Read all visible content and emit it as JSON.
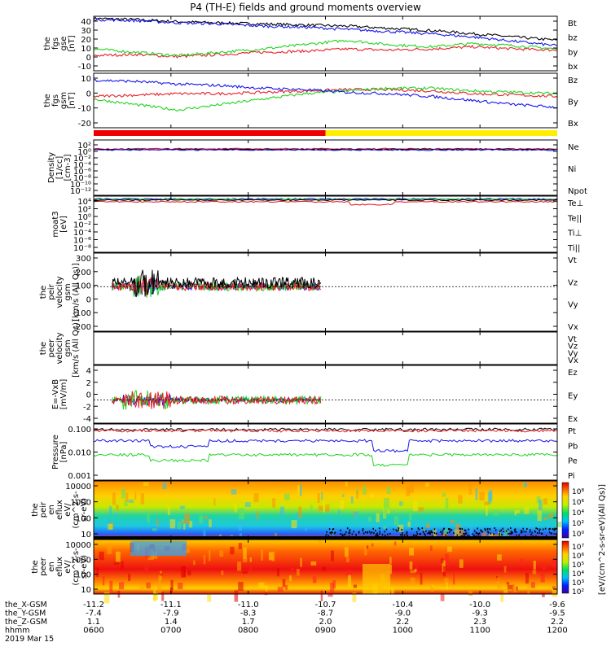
{
  "title": "P4 (TH-E) fields and ground moments overview",
  "date_label": "2019 Mar 15",
  "colors": {
    "black": "#000000",
    "red": "#e8202a",
    "green": "#22d422",
    "blue": "#1515ee"
  },
  "chart_data": [
    {
      "type": "line",
      "ylabel": [
        "the",
        "fgs",
        "gse",
        "[nT]"
      ],
      "ylim": [
        -10,
        40
      ],
      "yticks": [
        "40",
        "30",
        "20",
        "10",
        "0",
        "-10"
      ],
      "series": [
        {
          "name": "Bt",
          "color": "black",
          "values": [
            38,
            37,
            35,
            34,
            33,
            32,
            31,
            29,
            27,
            24,
            21,
            18
          ]
        },
        {
          "name": "bz",
          "color": "red",
          "values": [
            4,
            5,
            3,
            5,
            7,
            8,
            10,
            9,
            10,
            12,
            10,
            9
          ]
        },
        {
          "name": "by",
          "color": "green",
          "values": [
            10,
            7,
            4,
            7,
            10,
            14,
            18,
            14,
            12,
            15,
            13,
            10
          ]
        },
        {
          "name": "bx",
          "color": "blue",
          "values": [
            37,
            36,
            34,
            33,
            31,
            30,
            28,
            26,
            24,
            21,
            17,
            13
          ]
        }
      ]
    },
    {
      "type": "line",
      "ylabel": [
        "the",
        "fgs",
        "gsm",
        "[nT]"
      ],
      "ylim": [
        -25,
        15
      ],
      "yticks": [
        "10",
        "0",
        "-10",
        "-20"
      ],
      "series": [
        {
          "name": "Bz",
          "color": "red",
          "values": [
            -2,
            -1,
            0,
            0,
            1,
            2,
            3,
            3,
            2,
            0,
            -1,
            -2
          ]
        },
        {
          "name": "By",
          "color": "green",
          "values": [
            -4,
            -8,
            -12,
            -8,
            -4,
            0,
            2,
            4,
            4,
            2,
            1,
            0
          ]
        },
        {
          "name": "Bx",
          "color": "blue",
          "values": [
            10,
            9,
            7,
            6,
            4,
            3,
            1,
            0,
            -2,
            -5,
            -8,
            -10
          ]
        }
      ]
    },
    {
      "type": "line",
      "log_scale": true,
      "ylabel": [
        "Density",
        "[1/cc]",
        "[cm-3]"
      ],
      "yticks": [
        "10²",
        "10⁰",
        "10⁻²",
        "10⁻⁴",
        "10⁻⁶",
        "10⁻⁸",
        "10⁻¹⁰",
        "10⁻¹²"
      ],
      "series": [
        {
          "name": "Ne",
          "color": "red"
        },
        {
          "name": "Ni",
          "color": "black"
        },
        {
          "name": "Npot",
          "color": "blue"
        }
      ]
    },
    {
      "type": "line",
      "log_scale": true,
      "ylabel": [
        "moat3",
        "[eV]"
      ],
      "yticks": [
        "10⁴",
        "10²",
        "10⁰",
        "10⁻²",
        "10⁻⁴",
        "10⁻⁶",
        "10⁻⁸"
      ],
      "series": [
        {
          "name": "Te⊥",
          "color": "red"
        },
        {
          "name": "Te||",
          "color": "black"
        },
        {
          "name": "Ti⊥",
          "color": "green"
        },
        {
          "name": "Ti||",
          "color": "green"
        }
      ]
    },
    {
      "type": "line",
      "ylabel": [
        "the",
        "peir",
        "velocity",
        "gsm",
        "[km/s (All Qs)]"
      ],
      "ylim": [
        -200,
        300
      ],
      "yticks": [
        "300",
        "200",
        "100",
        "0",
        "-100",
        "-200"
      ],
      "series": [
        {
          "name": "Vt",
          "color": "black"
        },
        {
          "name": "Vz",
          "color": "red"
        },
        {
          "name": "Vy",
          "color": "green"
        },
        {
          "name": "Vx",
          "color": "blue"
        }
      ]
    },
    {
      "type": "line",
      "ylabel": [
        "the",
        "peer",
        "velocity",
        "gsm",
        "[km/s (All Qs)]"
      ],
      "series": [
        {
          "name": "Vt",
          "color": "black"
        },
        {
          "name": "Vz",
          "color": "red"
        },
        {
          "name": "Vy",
          "color": "green"
        },
        {
          "name": "Vx",
          "color": "blue"
        }
      ]
    },
    {
      "type": "line",
      "ylabel": [
        "E=-VxB",
        "[mV/m]"
      ],
      "ylim": [
        -4,
        4
      ],
      "yticks": [
        "4",
        "2",
        "0",
        "-2",
        "-4"
      ],
      "series": [
        {
          "name": "Ez",
          "color": "red"
        },
        {
          "name": "Ey",
          "color": "green"
        },
        {
          "name": "Ex",
          "color": "blue"
        }
      ]
    },
    {
      "type": "line",
      "log_scale": true,
      "ylabel": [
        "Pressure",
        "[nPa]"
      ],
      "yticks": [
        "0.100",
        "0.010",
        "0.001"
      ],
      "series": [
        {
          "name": "Pt",
          "color": "black"
        },
        {
          "name": "Pb",
          "color": "red"
        },
        {
          "name": "Pe",
          "color": "green"
        },
        {
          "name": "Pi",
          "color": "blue"
        }
      ]
    },
    {
      "type": "heatmap",
      "ylabel": [
        "the",
        "peir",
        "en",
        "eflux",
        "eV/",
        "(cm^2-s-",
        "sr-eV)"
      ],
      "yticks": [
        "10000",
        "1000",
        "100",
        "10"
      ]
    },
    {
      "type": "heatmap",
      "ylabel": [
        "the",
        "peer",
        "en",
        "eflux",
        "eV/",
        "(cm^2-s-",
        "sr-eV)"
      ],
      "yticks": [
        "10000",
        "1000",
        "100",
        "10"
      ]
    }
  ],
  "colorbar": {
    "label": "[eV/(cm^2-s-sr-eV)(All Qs)]",
    "upper_ticks": [
      "10⁸",
      "10⁶",
      "10⁴",
      "10²",
      "10⁰"
    ],
    "lower_ticks": [
      "10⁷",
      "10⁶",
      "10⁵",
      "10⁴",
      "10³",
      "10²"
    ]
  },
  "x_axis": {
    "rows": [
      {
        "label": "the_X-GSM",
        "values": [
          "-11.2",
          "-11.1",
          "-11.0",
          "-10.7",
          "-10.4",
          "-10.0",
          "-9.6"
        ]
      },
      {
        "label": "the_Y-GSM",
        "values": [
          "-7.4",
          "-7.9",
          "-8.3",
          "-8.7",
          "-9.0",
          "-9.3",
          "-9.5"
        ]
      },
      {
        "label": "the_Z-GSM",
        "values": [
          "1.1",
          "1.4",
          "1.7",
          "2.0",
          "2.2",
          "2.3",
          "2.2"
        ]
      },
      {
        "label": "hhmm",
        "values": [
          "0600",
          "0700",
          "0800",
          "0900",
          "1000",
          "1100",
          "1200"
        ]
      }
    ]
  }
}
